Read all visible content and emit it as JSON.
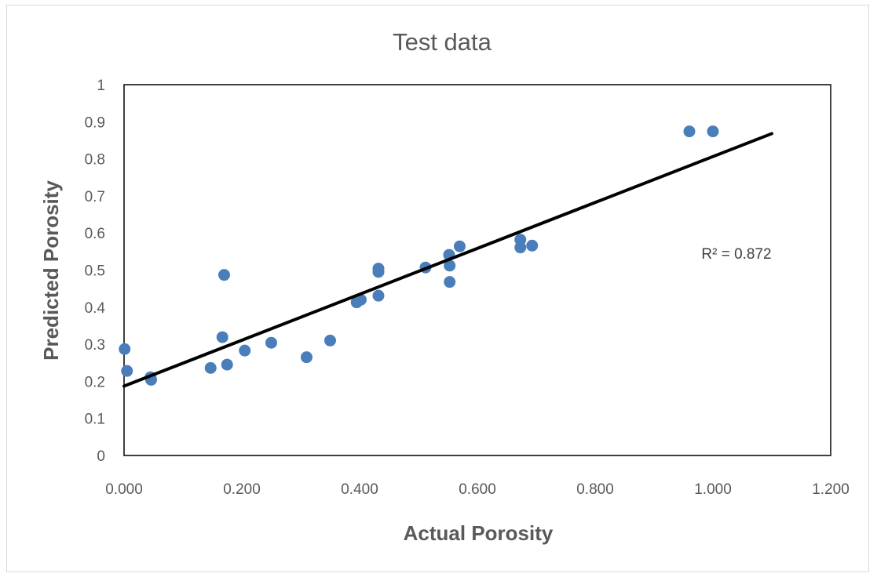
{
  "chart_data": {
    "type": "scatter",
    "title": "Test data",
    "xlabel": "Actual Porosity",
    "ylabel": "Predicted Porosity",
    "xlim": [
      0,
      1.2
    ],
    "ylim": [
      0,
      1
    ],
    "xticks": [
      "0.000",
      "0.200",
      "0.400",
      "0.600",
      "0.800",
      "1.000",
      "1.200"
    ],
    "yticks": [
      "0",
      "0.1",
      "0.2",
      "0.3",
      "0.4",
      "0.5",
      "0.6",
      "0.7",
      "0.8",
      "0.9",
      "1"
    ],
    "marker_color": "#4a7ebb",
    "trendline_color": "#000000",
    "r2_label": "R² = 0.872",
    "trendline": {
      "x": [
        0,
        1.1
      ],
      "y": [
        0.187,
        0.868
      ]
    },
    "series": [
      {
        "name": "Test data",
        "x": [
          0.001,
          0.005,
          0.045,
          0.046,
          0.147,
          0.167,
          0.17,
          0.175,
          0.205,
          0.25,
          0.31,
          0.35,
          0.395,
          0.402,
          0.432,
          0.432,
          0.432,
          0.512,
          0.552,
          0.553,
          0.553,
          0.57,
          0.673,
          0.673,
          0.693,
          0.96,
          1.0
        ],
        "y": [
          0.287,
          0.228,
          0.211,
          0.204,
          0.236,
          0.319,
          0.487,
          0.245,
          0.283,
          0.304,
          0.265,
          0.31,
          0.413,
          0.42,
          0.431,
          0.495,
          0.504,
          0.507,
          0.541,
          0.512,
          0.468,
          0.564,
          0.582,
          0.561,
          0.566,
          0.874,
          0.874
        ]
      }
    ]
  }
}
